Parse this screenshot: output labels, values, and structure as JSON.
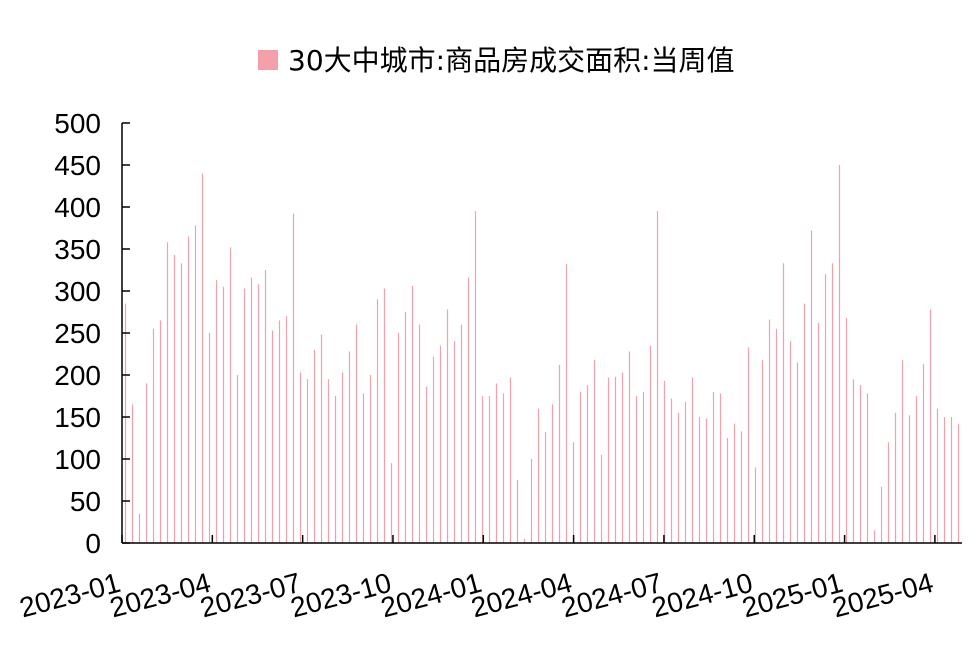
{
  "chart_data": {
    "type": "bar",
    "legend": {
      "label": "30大中城市:商品房成交面积:当周值",
      "position": "top-center"
    },
    "series": [
      {
        "name": "30大中城市:商品房成交面积:当周值",
        "color": "#f4a0a8",
        "values": [
          285,
          165,
          35,
          190,
          255,
          265,
          358,
          343,
          333,
          365,
          378,
          440,
          250,
          313,
          305,
          352,
          200,
          303,
          316,
          308,
          325,
          253,
          265,
          270,
          392,
          203,
          195,
          230,
          248,
          195,
          175,
          203,
          228,
          260,
          178,
          200,
          290,
          303,
          95,
          250,
          275,
          306,
          260,
          186,
          222,
          235,
          278,
          240,
          260,
          316,
          395,
          175,
          175,
          190,
          178,
          197,
          75,
          5,
          100,
          160,
          132,
          165,
          212,
          332,
          120,
          180,
          188,
          218,
          105,
          197,
          198,
          203,
          228,
          175,
          180,
          235,
          395,
          193,
          172,
          155,
          168,
          197,
          150,
          148,
          180,
          178,
          125,
          142,
          133,
          233,
          90,
          218,
          266,
          255,
          333,
          240,
          215,
          285,
          372,
          262,
          320,
          333,
          450,
          268,
          195,
          188,
          178,
          15,
          67,
          120,
          155,
          218,
          152,
          175,
          213,
          278,
          160,
          150,
          150,
          142
        ]
      }
    ],
    "x_tick_labels": [
      "2023-01",
      "2023-04",
      "2023-07",
      "2023-10",
      "2024-01",
      "2024-04",
      "2024-07",
      "2024-10",
      "2025-01",
      "2025-04"
    ],
    "y_tick_labels": [
      "0",
      "50",
      "100",
      "150",
      "200",
      "250",
      "300",
      "350",
      "400",
      "450",
      "500"
    ],
    "ylim": [
      0,
      500
    ],
    "grid": false,
    "xlabel": "",
    "ylabel": ""
  }
}
